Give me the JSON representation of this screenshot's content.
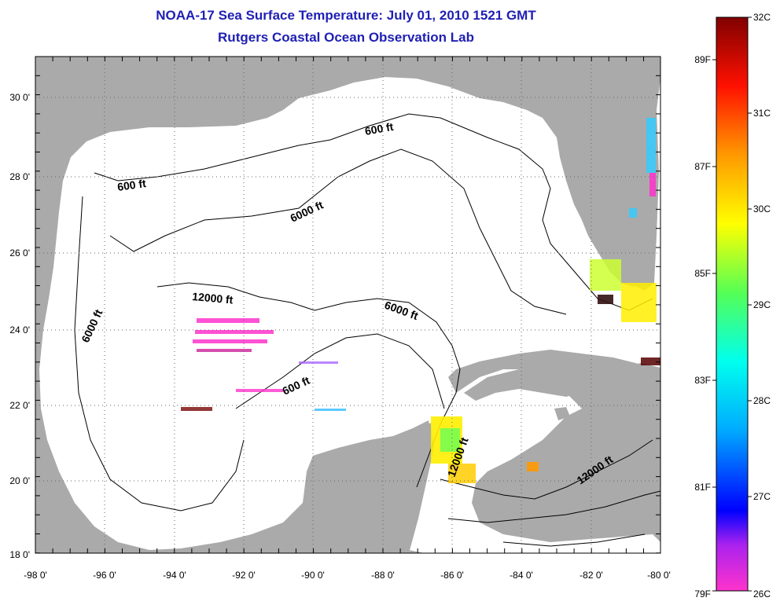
{
  "header": {
    "title": "NOAA-17 Sea Surface Temperature:  July 01, 2010 1521 GMT",
    "subtitle": "Rutgers Coastal Ocean Observation Lab"
  },
  "map": {
    "lon_labels": [
      "-98 0'",
      "-96 0'",
      "-94 0'",
      "-92 0'",
      "-90 0'",
      "-88 0'",
      "-86 0'",
      "-84 0'",
      "-82 0'",
      "-80 0'"
    ],
    "lat_labels": [
      "30 0'",
      "28 0'",
      "26 0'",
      "24 0'",
      "22 0'",
      "20 0'",
      "18 0'"
    ],
    "contour_labels": [
      {
        "id": "c600a",
        "text": "600 ft"
      },
      {
        "id": "c600b",
        "text": "600 ft"
      },
      {
        "id": "c600c",
        "text": "600 ft"
      },
      {
        "id": "c6000a",
        "text": "6000 ft"
      },
      {
        "id": "c6000b",
        "text": "6000 ft"
      },
      {
        "id": "c6000c",
        "text": "6000 ft"
      },
      {
        "id": "c12000a",
        "text": "12000 ft"
      },
      {
        "id": "c12000b",
        "text": "12000 ft"
      },
      {
        "id": "c12000c",
        "text": "12000 ft"
      }
    ],
    "colors": {
      "land": "#aaaaaa",
      "water": "#ffffff",
      "title": "#1f1fb4"
    }
  },
  "colorbar": {
    "celsius": [
      "32C",
      "31C",
      "30C",
      "29C",
      "28C",
      "27C",
      "26C"
    ],
    "fahrenheit": [
      "89F",
      "87F",
      "85F",
      "83F",
      "81F",
      "79F"
    ],
    "range_c": [
      26,
      32
    ]
  }
}
